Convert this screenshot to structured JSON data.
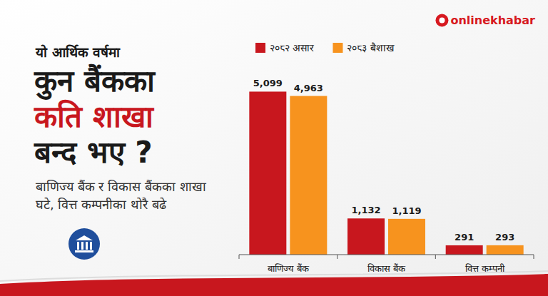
{
  "chart_data": {
    "type": "bar",
    "title": "कुन बैंकका कति शाखा बन्द भए ?",
    "subtitle": "बाणिज्य बैंक र विकास बैंकका शाखा घटे, वित्त कम्पनीका थोरै बढे",
    "annotations": [
      "यो आर्थिक वर्षमा",
      "onlinekhabar"
    ],
    "categories": [
      "बाणिज्य बैंक",
      "विकास बैंक",
      "वित्त कम्पनी"
    ],
    "series": [
      {
        "name": "२०८२ असार",
        "color": "#c8171e",
        "values": [
          5099,
          1132,
          291
        ],
        "value_labels": [
          "5,099",
          "1,132",
          "291"
        ]
      },
      {
        "name": "२०८३ बैशाख",
        "color": "#f7931e",
        "values": [
          4963,
          1119,
          293
        ],
        "value_labels": [
          "4,963",
          "1,119",
          "293"
        ]
      }
    ],
    "ylim": [
      0,
      5600
    ],
    "data_labels": true,
    "tick_labels": "x",
    "legend": "top",
    "grid": false
  }
}
